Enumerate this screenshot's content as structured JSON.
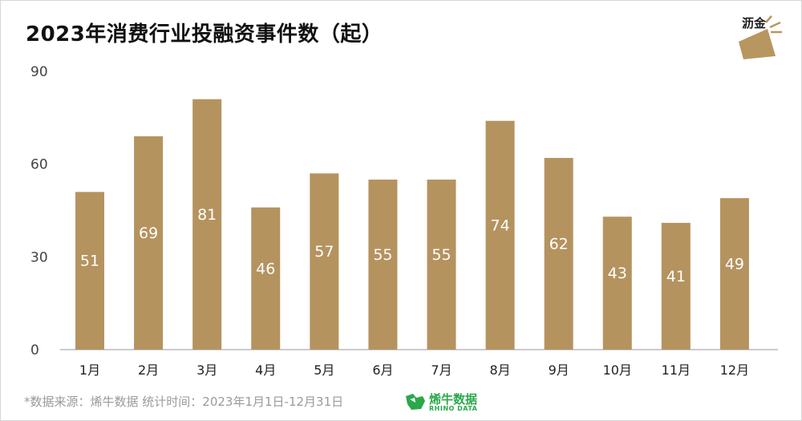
{
  "title": "2023年消费行业投融资事件数（起）",
  "logo": {
    "text": "沥金",
    "icon": "lijin-logo-icon",
    "color": "#b8965f"
  },
  "colors": {
    "bar": "#b5935f",
    "axis": "#999999",
    "bar_label": "#ffffff"
  },
  "footer": {
    "source": "*数据来源：烯牛数据 统计时间：2023年1月1日-12月31日",
    "brand_name": "烯牛数据",
    "brand_sub": "RHINO DATA",
    "brand_icon": "rhino-icon",
    "brand_color": "#2aa84a"
  },
  "chart_data": {
    "type": "bar",
    "title": "2023年消费行业投融资事件数（起）",
    "categories": [
      "1月",
      "2月",
      "3月",
      "4月",
      "5月",
      "6月",
      "7月",
      "8月",
      "9月",
      "10月",
      "11月",
      "12月"
    ],
    "values": [
      51,
      69,
      81,
      46,
      57,
      55,
      55,
      74,
      62,
      43,
      41,
      49
    ],
    "yticks": [
      0,
      30,
      60,
      90
    ],
    "ylim": [
      0,
      90
    ],
    "grid": false,
    "data_labels": true
  }
}
